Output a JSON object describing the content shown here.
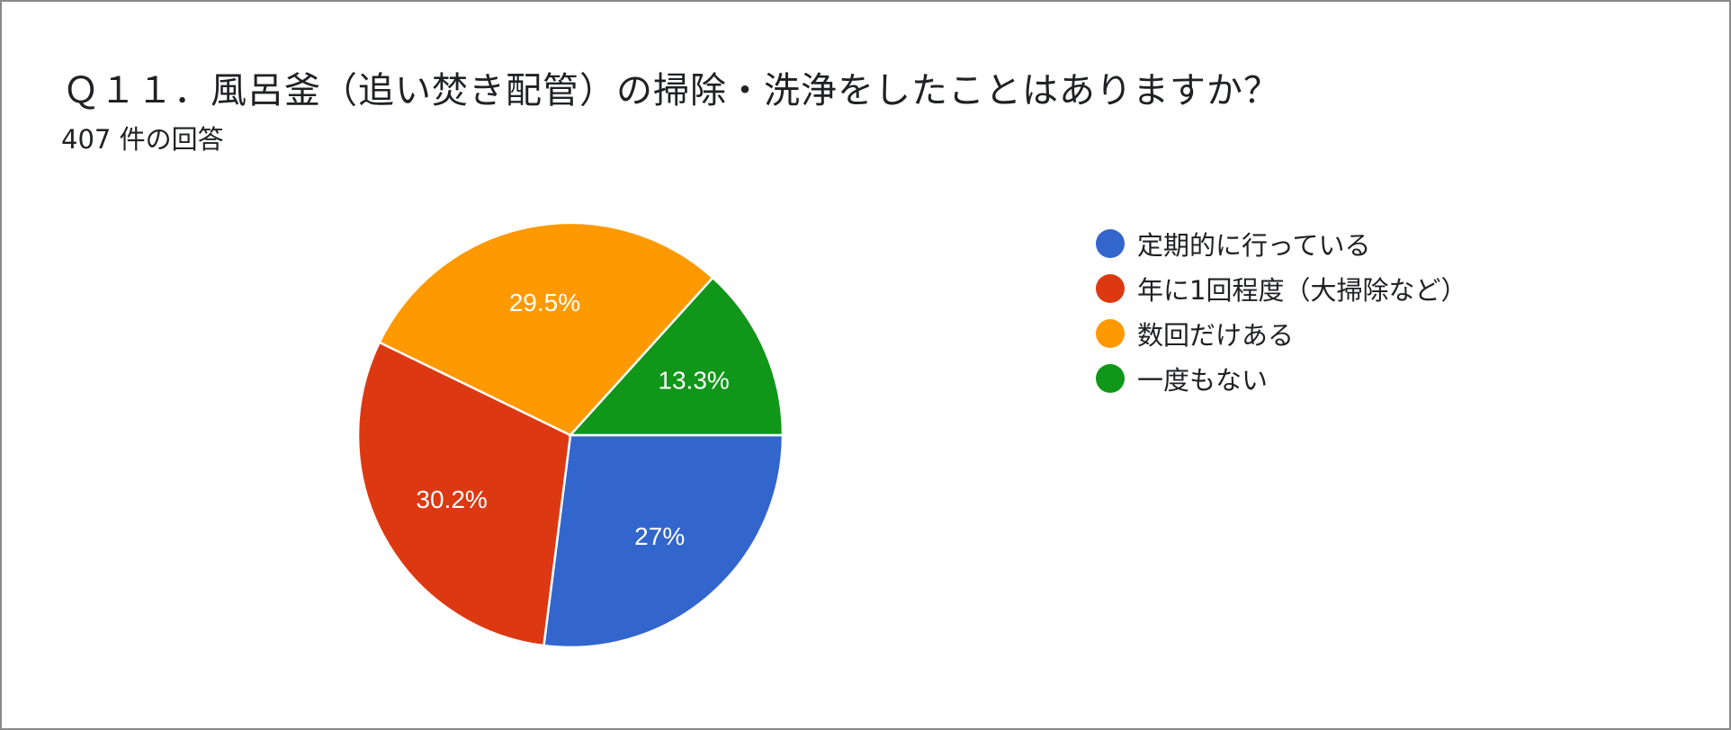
{
  "header": {
    "title": "Ｑ１１．風呂釜（追い焚き配管）の掃除・洗浄をしたことはありますか？",
    "response_count": "407 件の回答"
  },
  "chart_data": {
    "type": "pie",
    "title": "Ｑ１１．風呂釜（追い焚き配管）の掃除・洗浄をしたことはありますか？",
    "subtitle": "407 件の回答",
    "slices": [
      {
        "label": "定期的に行っている",
        "value": 27.0,
        "display": "27%",
        "color": "#3366cc"
      },
      {
        "label": "年に1回程度（大掃除など）",
        "value": 30.2,
        "display": "30.2%",
        "color": "#dc3912"
      },
      {
        "label": "数回だけある",
        "value": 29.5,
        "display": "29.5%",
        "color": "#ff9900"
      },
      {
        "label": "一度もない",
        "value": 13.3,
        "display": "13.3%",
        "color": "#109618"
      }
    ],
    "legend_position": "right",
    "start_angle": "3 o'clock, clockwise"
  }
}
